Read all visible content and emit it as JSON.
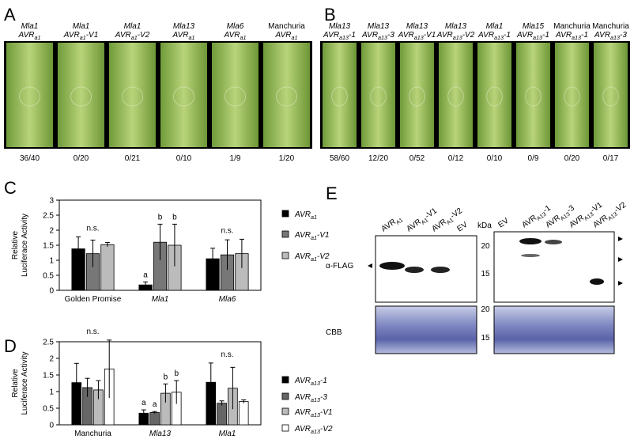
{
  "panel_a": {
    "letter": "A",
    "lanes": [
      {
        "host": "Mla1",
        "avr": "AVRa1",
        "score": "36/40"
      },
      {
        "host": "Mla1",
        "avr": "AVRa1-V1",
        "score": "0/20"
      },
      {
        "host": "Mla1",
        "avr": "AVRa1-V2",
        "score": "0/21"
      },
      {
        "host": "Mla13",
        "avr": "AVRa1",
        "score": "0/10"
      },
      {
        "host": "Mla6",
        "avr": "AVRa1",
        "score": "1/9"
      },
      {
        "host": "Manchuria",
        "avr": "AVRa1",
        "score": "1/20"
      }
    ]
  },
  "panel_b": {
    "letter": "B",
    "lanes": [
      {
        "host": "Mla13",
        "avr": "AVRa13-1",
        "score": "58/60"
      },
      {
        "host": "Mla13",
        "avr": "AVRa13-3",
        "score": "12/20"
      },
      {
        "host": "Mla13",
        "avr": "AVRa13-V1",
        "score": "0/52"
      },
      {
        "host": "Mla13",
        "avr": "AVRa13-V2",
        "score": "0/12"
      },
      {
        "host": "Mla1",
        "avr": "AVRa13-1",
        "score": "0/10"
      },
      {
        "host": "Mla15",
        "avr": "AVRa13-1",
        "score": "0/9"
      },
      {
        "host": "Manchuria",
        "avr": "AVRa13-1",
        "score": "0/20"
      },
      {
        "host": "Manchuria",
        "avr": "AVRa13-3",
        "score": "0/17"
      }
    ]
  },
  "chart_data": [
    {
      "type": "bar",
      "letter": "C",
      "ylabel": [
        "Relative",
        "Luciferace Activity"
      ],
      "categories": [
        "Golden Promise",
        "Mla1",
        "Mla6"
      ],
      "ylim": [
        0,
        3
      ],
      "yticks": [
        0,
        0.5,
        1,
        1.5,
        2,
        2.5,
        3
      ],
      "group_labels": [
        "n.s.",
        null,
        "n.s."
      ],
      "series": [
        {
          "name": "AVRa1",
          "color": "#000000",
          "values": [
            1.38,
            0.18,
            1.05
          ],
          "errors": [
            0.4,
            0.1,
            0.35
          ],
          "letters": [
            null,
            "a",
            null
          ]
        },
        {
          "name": "AVRa1-V1",
          "color": "#777777",
          "values": [
            1.22,
            1.6,
            1.18
          ],
          "errors": [
            0.45,
            0.6,
            0.5
          ],
          "letters": [
            null,
            "b",
            null
          ]
        },
        {
          "name": "AVRa1-V2",
          "color": "#bbbbbb",
          "values": [
            1.52,
            1.5,
            1.22
          ],
          "errors": [
            0.07,
            0.7,
            0.48
          ],
          "letters": [
            null,
            "b",
            null
          ]
        }
      ]
    },
    {
      "type": "bar",
      "letter": "D",
      "ylabel": [
        "Relative",
        "Luciferace Activity"
      ],
      "categories": [
        "Manchuria",
        "Mla13",
        "Mla1"
      ],
      "ylim": [
        0,
        2.5
      ],
      "yticks": [
        0,
        0.5,
        1,
        1.5,
        2,
        2.5
      ],
      "group_labels": [
        "n.s.",
        null,
        "n.s."
      ],
      "series": [
        {
          "name": "AVRa13-1",
          "color": "#000000",
          "values": [
            1.27,
            0.35,
            1.28
          ],
          "errors": [
            0.58,
            0.1,
            0.58
          ],
          "letters": [
            null,
            "a",
            null
          ]
        },
        {
          "name": "AVRa13-3",
          "color": "#666666",
          "values": [
            1.12,
            0.37,
            0.65
          ],
          "errors": [
            0.28,
            0.03,
            0.07
          ],
          "letters": [
            null,
            "a",
            null
          ]
        },
        {
          "name": "AVRa13-V1",
          "color": "#bbbbbb",
          "values": [
            1.05,
            0.95,
            1.1
          ],
          "errors": [
            0.28,
            0.28,
            0.63
          ],
          "letters": [
            null,
            "b",
            null
          ]
        },
        {
          "name": "AVRa13-V2",
          "color": "#ffffff",
          "values": [
            1.68,
            0.98,
            0.7
          ],
          "errors": [
            0.87,
            0.35,
            0.05
          ],
          "letters": [
            null,
            "b",
            null
          ]
        }
      ]
    }
  ],
  "panel_e": {
    "letter": "E",
    "left_lanes": [
      "AVRA1",
      "AVRA1-V1",
      "AVRA1-V2",
      "EV"
    ],
    "kda": "kDa",
    "right_lanes": [
      "EV",
      "AVRA13-1",
      "AVRA13-3",
      "AVRA13-V1",
      "AVRA13-V2"
    ],
    "blot_markers": [
      "20",
      "15"
    ],
    "cbb_markers": [
      "20",
      "15"
    ],
    "antibody": "α-FLAG",
    "stain": "CBB"
  }
}
